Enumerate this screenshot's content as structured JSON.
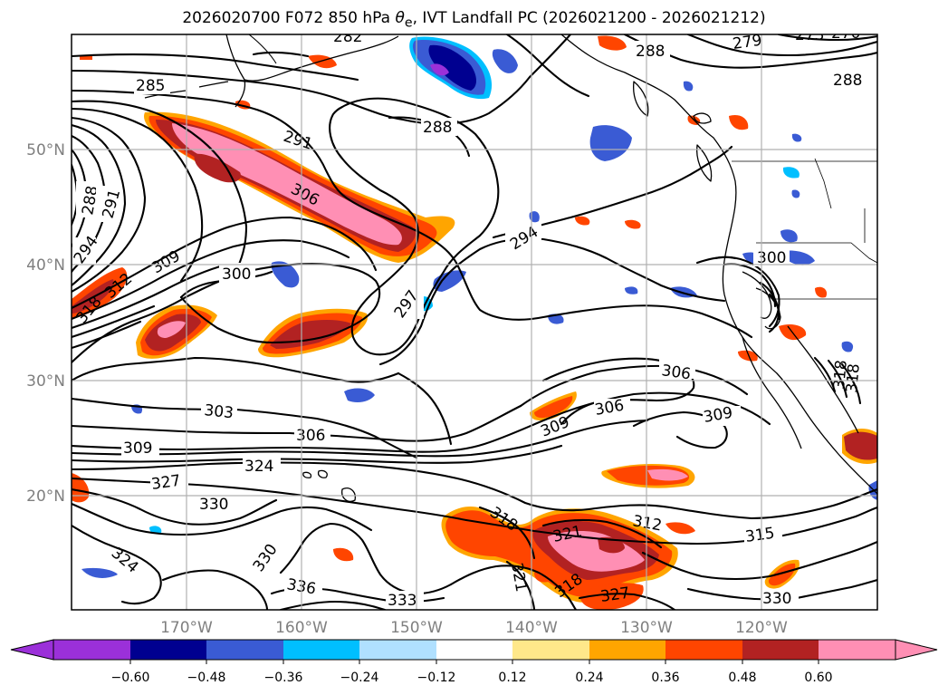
{
  "title_main": "2026020700 F072 850 hPa ",
  "title_symbol": "θ",
  "title_sub": "e",
  "title_rest": ", IVT Landfall PC (2026021200 - 2026021212)",
  "lat_labels": [
    "50°N",
    "40°N",
    "30°N",
    "20°N"
  ],
  "lon_labels": [
    "170°W",
    "160°W",
    "150°W",
    "140°W",
    "130°W",
    "120°W"
  ],
  "contour_labels": [
    "282",
    "279",
    "273",
    "270",
    "288",
    "288",
    "285",
    "288",
    "291",
    "288",
    "291",
    "306",
    "294",
    "294",
    "300",
    "309",
    "312",
    "318",
    "297",
    "300",
    "306",
    "303",
    "306",
    "309",
    "306",
    "309",
    "309",
    "324",
    "327",
    "330",
    "318",
    "321",
    "318",
    "312",
    "321",
    "315",
    "324",
    "330",
    "336",
    "333",
    "327",
    "330",
    "318",
    "318"
  ],
  "colorbar": {
    "colors": [
      "#9b30d9",
      "#000090",
      "#3a5bd4",
      "#00bfff",
      "#b0e0ff",
      "#ffffff",
      "#ffe88a",
      "#ffa500",
      "#ff4500",
      "#b22222",
      "#ff8fb4"
    ],
    "tick_labels": [
      "−0.60",
      "−0.48",
      "−0.36",
      "−0.24",
      "−0.12",
      "0.12",
      "0.24",
      "0.36",
      "0.48",
      "0.60"
    ]
  },
  "colors": {
    "grid": "#b0b0b0",
    "axis_label": "#7f7f7f",
    "contour": "#000000"
  }
}
